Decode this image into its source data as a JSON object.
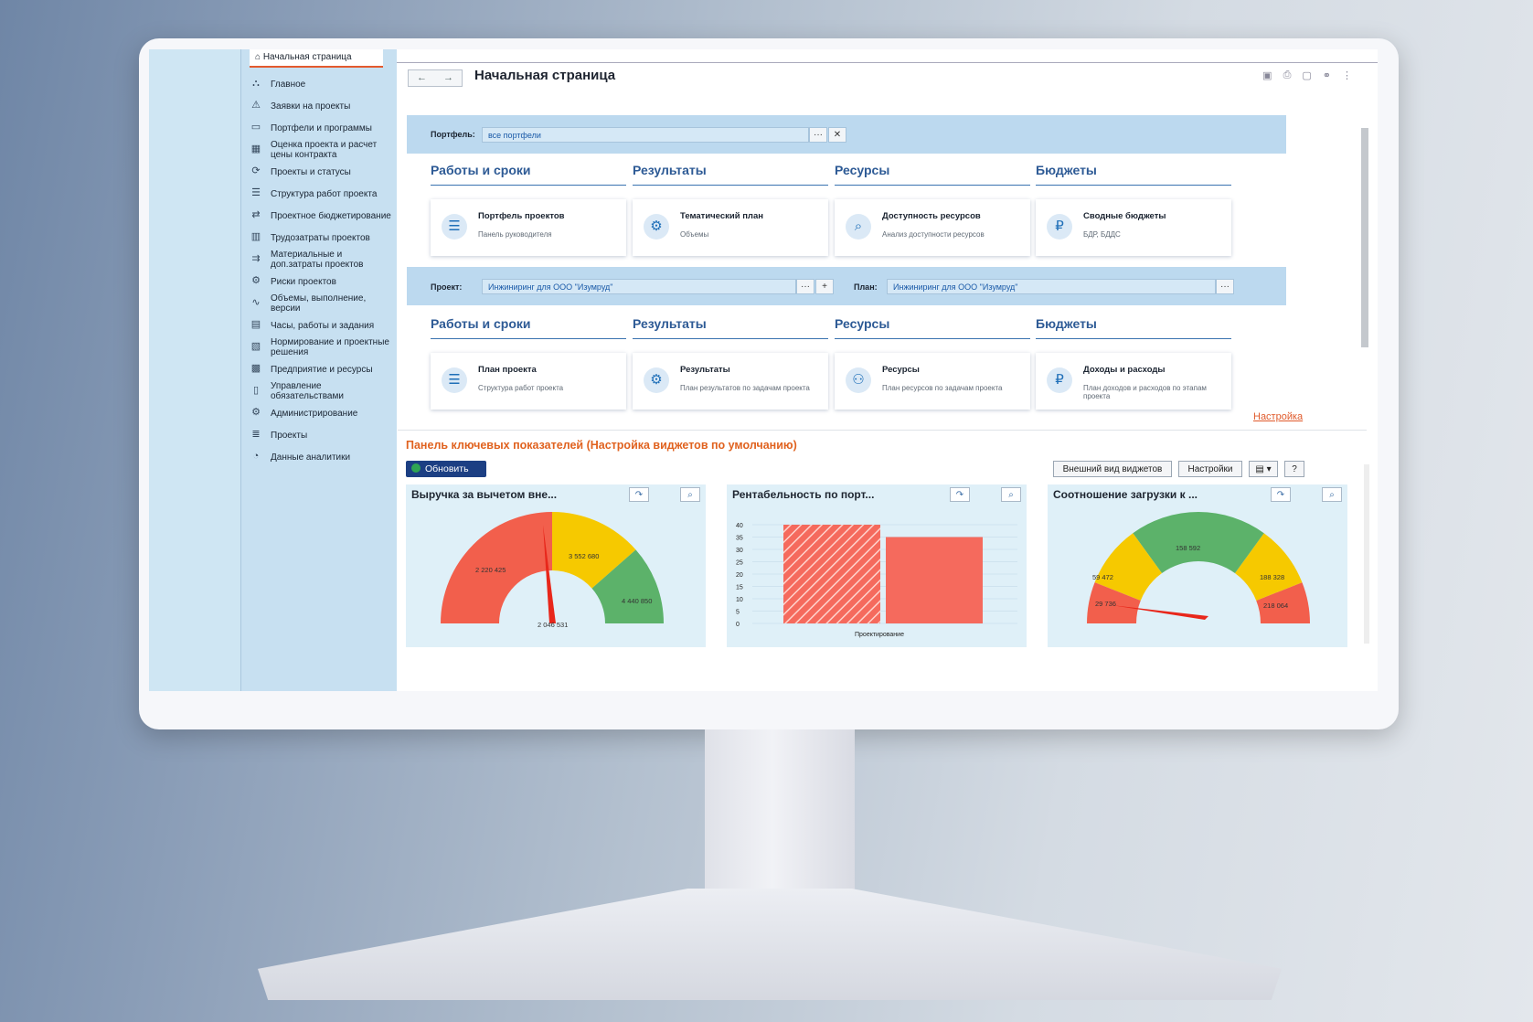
{
  "home_tab": "Начальная страница",
  "sidebar": {
    "items": [
      {
        "label": "Главное",
        "icon": "home-chart-icon"
      },
      {
        "label": "Заявки на проекты",
        "icon": "requests-icon"
      },
      {
        "label": "Портфели и программы",
        "icon": "portfolio-icon"
      },
      {
        "label": "Оценка проекта и расчет цены контракта",
        "icon": "estimate-icon"
      },
      {
        "label": "Проекты и статусы",
        "icon": "status-icon"
      },
      {
        "label": "Структура работ проекта",
        "icon": "wbs-icon"
      },
      {
        "label": "Проектное бюджетирование",
        "icon": "budget-icon"
      },
      {
        "label": "Трудозатраты проектов",
        "icon": "labor-icon"
      },
      {
        "label": "Материальные и доп.затраты проектов",
        "icon": "materials-icon"
      },
      {
        "label": "Риски проектов",
        "icon": "risks-icon"
      },
      {
        "label": "Объемы, выполнение, версии",
        "icon": "volumes-icon"
      },
      {
        "label": "Часы, работы и задания",
        "icon": "hours-icon"
      },
      {
        "label": "Нормирование и проектные решения",
        "icon": "norms-icon"
      },
      {
        "label": "Предприятие и ресурсы",
        "icon": "enterprise-icon"
      },
      {
        "label": "Управление обязательствами",
        "icon": "obligations-icon"
      },
      {
        "label": "Администрирование",
        "icon": "gear-icon"
      },
      {
        "label": "Проекты",
        "icon": "projects-icon"
      },
      {
        "label": "Данные аналитики",
        "icon": "analytics-icon"
      }
    ]
  },
  "header": {
    "title": "Начальная страница",
    "back": "←",
    "forward": "→"
  },
  "portfolio_filter": {
    "label": "Портфель:",
    "value": "все портфели"
  },
  "sections1": [
    {
      "title": "Работы и сроки",
      "card_title": "Портфель проектов",
      "card_sub": "Панель руководителя",
      "icon": "list-icon"
    },
    {
      "title": "Результаты",
      "card_title": "Тематический план",
      "card_sub": "Объемы",
      "icon": "results-icon"
    },
    {
      "title": "Ресурсы",
      "card_title": "Доступность ресурсов",
      "card_sub": "Анализ доступности ресурсов",
      "icon": "resource-search-icon"
    },
    {
      "title": "Бюджеты",
      "card_title": "Сводные бюджеты",
      "card_sub": "БДР, БДДС",
      "icon": "ruble-icon"
    }
  ],
  "project_filter": {
    "label": "Проект:",
    "value": "Инжиниринг для ООО \"Изумруд\"",
    "plan_label": "План:",
    "plan_value": "Инжиниринг для ООО \"Изумруд\""
  },
  "sections2": [
    {
      "title": "Работы и сроки",
      "card_title": "План проекта",
      "card_sub": "Структура работ проекта",
      "icon": "list-icon"
    },
    {
      "title": "Результаты",
      "card_title": "Результаты",
      "card_sub": "План результатов по задачам проекта",
      "icon": "results-icon"
    },
    {
      "title": "Ресурсы",
      "card_title": "Ресурсы",
      "card_sub": "План ресурсов по задачам проекта",
      "icon": "resource-icon"
    },
    {
      "title": "Бюджеты",
      "card_title": "Доходы и расходы",
      "card_sub": "План доходов и расходов по этапам проекта",
      "icon": "ruble-icon"
    }
  ],
  "settings_link": "Настройка",
  "kpi": {
    "title": "Панель ключевых показателей (Настройка виджетов по умолчанию)",
    "refresh": "Обновить",
    "appearance": "Внешний вид виджетов",
    "settings": "Настройки",
    "help": "?"
  },
  "colors": {
    "red": "#f25f4c",
    "yellow": "#f6c900",
    "green": "#5cb26a",
    "accent": "#e0621f",
    "brand": "#1c3f83"
  },
  "chart_data": [
    {
      "type": "gauge",
      "title": "Выручка за вычетом вне...",
      "segments": [
        {
          "label": "2 220 425",
          "color": "#f25f4c"
        },
        {
          "label": "3 552 680",
          "color": "#f6c900"
        },
        {
          "label": "4 440 850",
          "color": "#5cb26a"
        }
      ],
      "value_label": "2 046 531"
    },
    {
      "type": "bar",
      "title": "Рентабельность по порт...",
      "categories": [
        "Проектирование"
      ],
      "series": [
        {
          "values": [
            40
          ]
        },
        {
          "values": [
            35
          ]
        }
      ],
      "yticks": [
        0,
        5,
        10,
        15,
        20,
        25,
        30,
        35,
        40
      ],
      "ylim": [
        0,
        40
      ]
    },
    {
      "type": "gauge",
      "title": "Соотношение загрузки к ...",
      "segments": [
        {
          "label": "29 736",
          "color": "#f25f4c"
        },
        {
          "label": "59 472",
          "color": "#f6c900"
        },
        {
          "label": "158 592",
          "color": "#5cb26a"
        },
        {
          "label": "188 328",
          "color": "#f6c900"
        },
        {
          "label": "218 064",
          "color": "#f25f4c"
        }
      ]
    }
  ]
}
